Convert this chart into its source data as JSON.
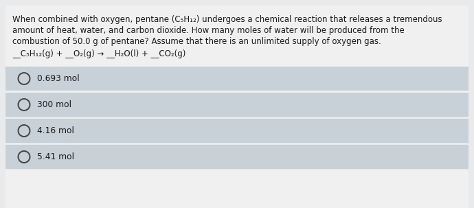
{
  "bg_color": "#e8eaec",
  "question_area_color": "#f0f0f0",
  "option_bg": "#c8d0d8",
  "option_gap_color": "#e8eaec",
  "question_text_line1": "When combined with oxygen, pentane (C₅H₁₂) undergoes a chemical reaction that releases a tremendous",
  "question_text_line2": "amount of heat, water, and carbon dioxide. How many moles of water will be produced from the",
  "question_text_line3": "combustion of 50.0 g of pentane? Assume that there is an unlimited supply of oxygen gas.",
  "equation": "__C₅H₁₂(g) + __O₂(g) → __H₂O(l) + __CO₂(g)",
  "options": [
    "0.693 mol",
    "300 mol",
    "4.16 mol",
    "5.41 mol"
  ],
  "font_size_question": 8.5,
  "font_size_options": 8.8,
  "font_size_equation": 8.5,
  "text_color": "#1a1a1a",
  "circle_color": "#444444",
  "circle_lw": 1.4
}
